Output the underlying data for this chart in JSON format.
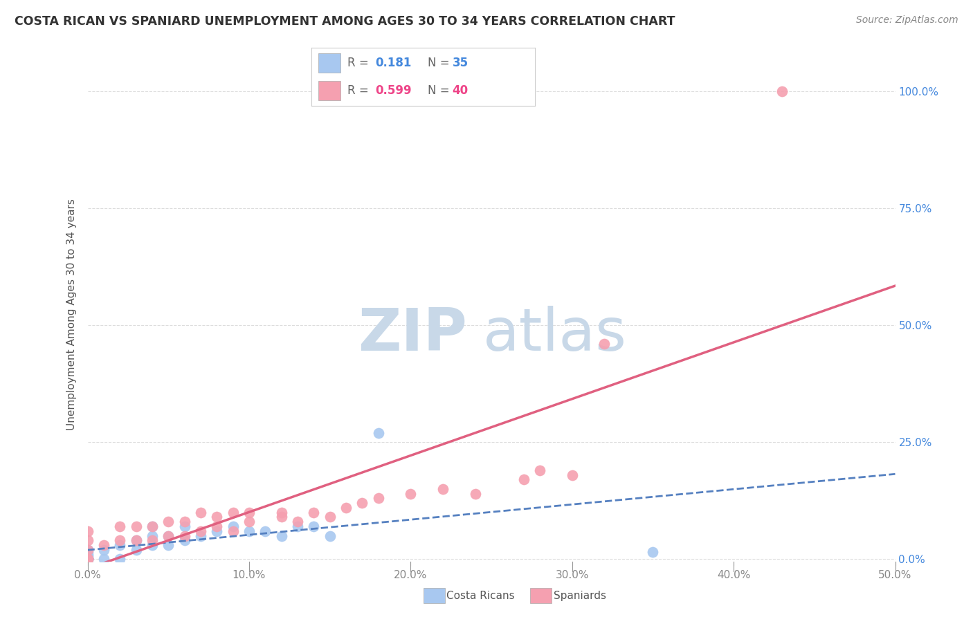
{
  "title": "COSTA RICAN VS SPANIARD UNEMPLOYMENT AMONG AGES 30 TO 34 YEARS CORRELATION CHART",
  "source": "Source: ZipAtlas.com",
  "ylabel": "Unemployment Among Ages 30 to 34 years",
  "xlim": [
    0.0,
    0.5
  ],
  "ylim": [
    -0.005,
    1.05
  ],
  "xticks": [
    0.0,
    0.1,
    0.2,
    0.3,
    0.4,
    0.5
  ],
  "yticks_right": [
    0.0,
    0.25,
    0.5,
    0.75,
    1.0
  ],
  "ytick_labels_right": [
    "0.0%",
    "25.0%",
    "50.0%",
    "75.0%",
    "100.0%"
  ],
  "xtick_labels": [
    "0.0%",
    "10.0%",
    "20.0%",
    "30.0%",
    "40.0%",
    "50.0%"
  ],
  "costa_rican_color": "#a8c8f0",
  "spaniard_color": "#f5a0b0",
  "costa_rican_line_color": "#5580c0",
  "spaniard_line_color": "#e06080",
  "background_color": "#ffffff",
  "grid_color": "#dddddd",
  "watermark_color": "#c8d8e8",
  "costa_ricans_scatter": {
    "x": [
      0.0,
      0.0,
      0.0,
      0.0,
      0.0,
      0.0,
      0.0,
      0.0,
      0.0,
      0.0,
      0.0,
      0.01,
      0.01,
      0.02,
      0.02,
      0.03,
      0.03,
      0.04,
      0.04,
      0.04,
      0.05,
      0.05,
      0.06,
      0.06,
      0.07,
      0.08,
      0.09,
      0.1,
      0.11,
      0.12,
      0.13,
      0.14,
      0.15,
      0.18,
      0.35
    ],
    "y": [
      0.0,
      0.0,
      0.0,
      0.0,
      0.0,
      0.0,
      0.0,
      0.005,
      0.01,
      0.015,
      0.02,
      0.0,
      0.02,
      0.0,
      0.03,
      0.02,
      0.04,
      0.03,
      0.05,
      0.07,
      0.03,
      0.05,
      0.04,
      0.07,
      0.05,
      0.06,
      0.07,
      0.06,
      0.06,
      0.05,
      0.07,
      0.07,
      0.05,
      0.27,
      0.015
    ]
  },
  "spaniards_scatter": {
    "x": [
      0.0,
      0.0,
      0.0,
      0.0,
      0.0,
      0.01,
      0.02,
      0.02,
      0.03,
      0.03,
      0.04,
      0.04,
      0.05,
      0.05,
      0.06,
      0.06,
      0.07,
      0.07,
      0.08,
      0.08,
      0.09,
      0.09,
      0.1,
      0.1,
      0.12,
      0.12,
      0.13,
      0.14,
      0.15,
      0.16,
      0.17,
      0.18,
      0.2,
      0.22,
      0.24,
      0.27,
      0.28,
      0.3,
      0.32,
      0.43
    ],
    "y": [
      0.0,
      0.0,
      0.02,
      0.04,
      0.06,
      0.03,
      0.04,
      0.07,
      0.04,
      0.07,
      0.04,
      0.07,
      0.05,
      0.08,
      0.05,
      0.08,
      0.06,
      0.1,
      0.07,
      0.09,
      0.06,
      0.1,
      0.08,
      0.1,
      0.09,
      0.1,
      0.08,
      0.1,
      0.09,
      0.11,
      0.12,
      0.13,
      0.14,
      0.15,
      0.14,
      0.17,
      0.19,
      0.18,
      0.46,
      1.0
    ]
  },
  "cr_R": 0.181,
  "cr_N": 35,
  "sp_R": 0.599,
  "sp_N": 40,
  "legend_R_color": "#4488dd",
  "legend_sp_color": "#ee4488"
}
